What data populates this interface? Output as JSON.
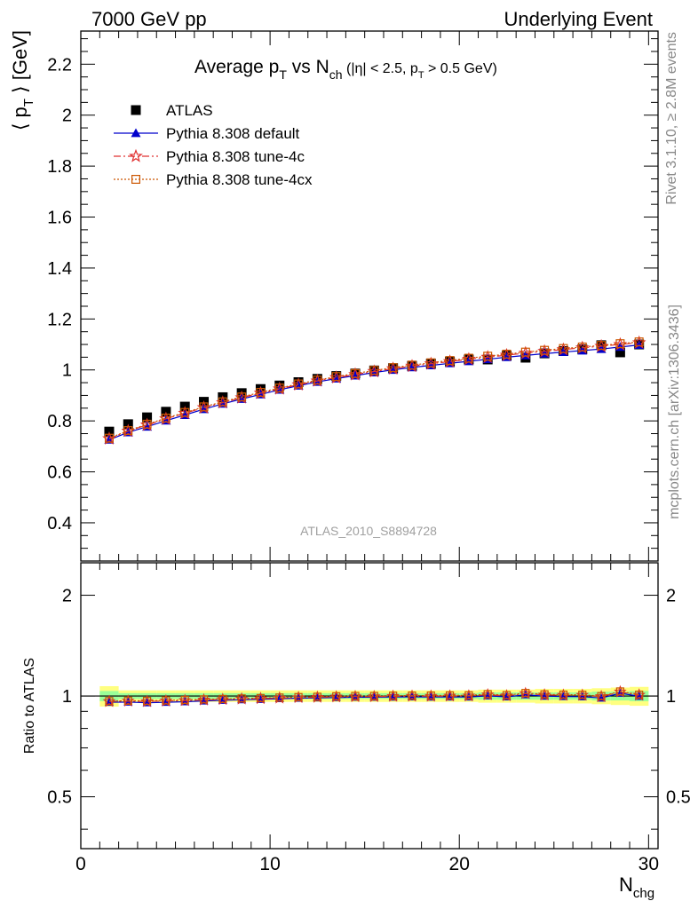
{
  "header": {
    "left": "7000 GeV pp",
    "right": "Underlying Event"
  },
  "side_labels": {
    "rivet": "Rivet 3.1.10, ≥ 2.8M events",
    "mcplots": "mcplots.cern.ch [arXiv:1306.3436]"
  },
  "chart_data": {
    "type": "scatter",
    "title": "Average p_T vs N_ch (|η| < 2.5, p_T > 0.5 GeV)",
    "title_parts": {
      "main": "Average p",
      "sub1": "T",
      "vs": " vs N",
      "sub2": "ch",
      "cond1": " (|η| < 2.5, p",
      "sub3": "T",
      "cond2": " > 0.5 GeV)"
    },
    "analysis_label": "ATLAS_2010_S8894728",
    "xlabel": "N_chg",
    "xlabel_parts": {
      "main": "N",
      "sub": "chg"
    },
    "ylabel": "⟨ p_T ⟩ [GeV]",
    "ylabel_parts": {
      "pre": "⟨ p",
      "sub": "T",
      "post": " ⟩ [GeV]"
    },
    "ratio_ylabel": "Ratio to ATLAS",
    "xlim": [
      0,
      30.5
    ],
    "ylim": [
      0.25,
      2.33
    ],
    "ratio_ylim": [
      0.35,
      2.5
    ],
    "ratio_log": true,
    "x_ticks": [
      0,
      10,
      20,
      30
    ],
    "y_ticks": [
      0.4,
      0.6,
      0.8,
      1,
      1.2,
      1.4,
      1.6,
      1.8,
      2,
      2.2
    ],
    "ratio_ticks": [
      0.5,
      1,
      2
    ],
    "legend_position": "top-left",
    "x": [
      1.5,
      2.5,
      3.5,
      4.5,
      5.5,
      6.5,
      7.5,
      8.5,
      9.5,
      10.5,
      11.5,
      12.5,
      13.5,
      14.5,
      15.5,
      16.5,
      17.5,
      18.5,
      19.5,
      20.5,
      21.5,
      22.5,
      23.5,
      24.5,
      25.5,
      26.5,
      27.5,
      28.5,
      29.5
    ],
    "band_outer": [
      0.07,
      0.04,
      0.04,
      0.04,
      0.04,
      0.04,
      0.04,
      0.04,
      0.04,
      0.04,
      0.04,
      0.04,
      0.04,
      0.04,
      0.04,
      0.04,
      0.04,
      0.04,
      0.04,
      0.04,
      0.045,
      0.045,
      0.045,
      0.05,
      0.05,
      0.05,
      0.055,
      0.06,
      0.065
    ],
    "band_inner": [
      0.035,
      0.02,
      0.02,
      0.02,
      0.02,
      0.02,
      0.02,
      0.02,
      0.02,
      0.02,
      0.02,
      0.02,
      0.02,
      0.02,
      0.02,
      0.02,
      0.02,
      0.02,
      0.02,
      0.02,
      0.025,
      0.025,
      0.025,
      0.025,
      0.025,
      0.025,
      0.03,
      0.03,
      0.035
    ],
    "series": [
      {
        "name": "ATLAS",
        "marker": "square",
        "color": "#000000",
        "values": [
          0.758,
          0.787,
          0.814,
          0.836,
          0.856,
          0.875,
          0.893,
          0.909,
          0.925,
          0.939,
          0.952,
          0.965,
          0.976,
          0.986,
          0.998,
          1.007,
          1.016,
          1.025,
          1.033,
          1.041,
          1.041,
          1.056,
          1.048,
          1.065,
          1.074,
          1.081,
          1.097,
          1.069,
          1.1
        ]
      },
      {
        "name": "Pythia 8.308 default",
        "marker": "triangle",
        "color": "#0000cc",
        "line": "solid",
        "values": [
          0.726,
          0.755,
          0.777,
          0.801,
          0.823,
          0.846,
          0.867,
          0.886,
          0.904,
          0.922,
          0.938,
          0.953,
          0.966,
          0.978,
          0.99,
          1.0,
          1.01,
          1.018,
          1.026,
          1.034,
          1.042,
          1.05,
          1.057,
          1.064,
          1.07,
          1.076,
          1.082,
          1.09,
          1.098
        ]
      },
      {
        "name": "Pythia 8.308 tune-4c",
        "marker": "star",
        "color": "#e03030",
        "line": "dashdot",
        "values": [
          0.73,
          0.76,
          0.784,
          0.808,
          0.83,
          0.852,
          0.872,
          0.891,
          0.909,
          0.926,
          0.942,
          0.957,
          0.97,
          0.982,
          0.994,
          1.005,
          1.015,
          1.024,
          1.033,
          1.042,
          1.05,
          1.058,
          1.066,
          1.073,
          1.08,
          1.087,
          1.093,
          1.1,
          1.107
        ]
      },
      {
        "name": "Pythia 8.308 tune-4cx",
        "marker": "open-square",
        "color": "#cc5500",
        "line": "dotted",
        "values": [
          0.732,
          0.762,
          0.787,
          0.811,
          0.833,
          0.855,
          0.875,
          0.894,
          0.912,
          0.929,
          0.945,
          0.96,
          0.974,
          0.986,
          0.998,
          1.009,
          1.019,
          1.028,
          1.037,
          1.046,
          1.054,
          1.062,
          1.07,
          1.077,
          1.084,
          1.09,
          1.096,
          1.103,
          1.11
        ]
      }
    ]
  }
}
